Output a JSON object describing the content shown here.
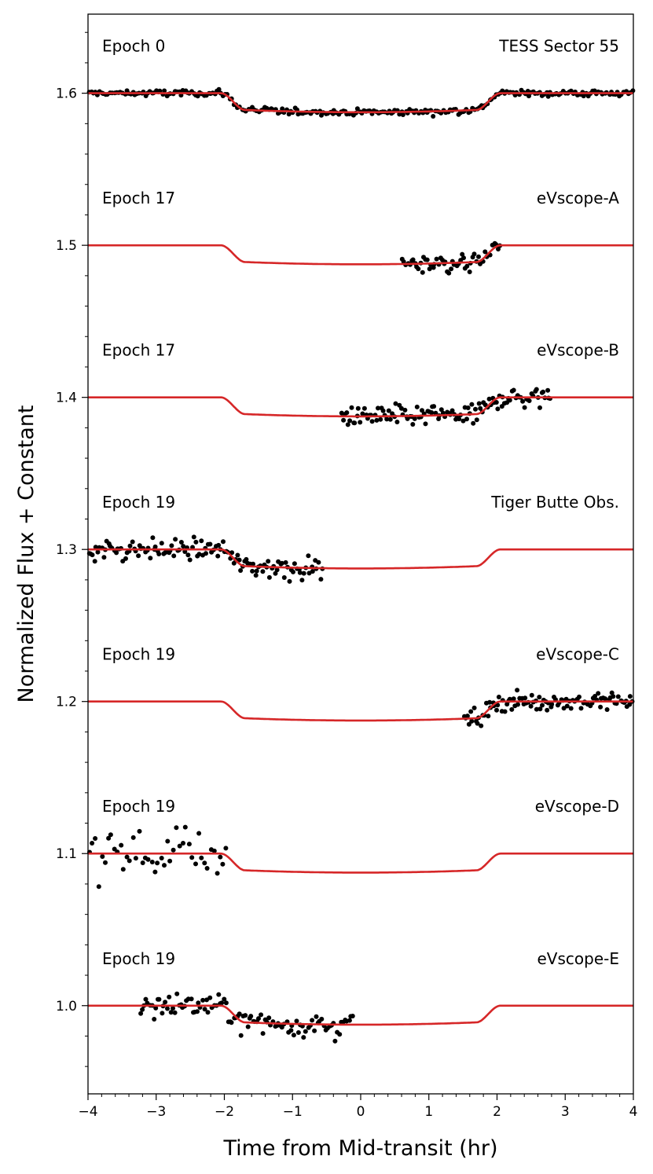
{
  "chart_data": {
    "type": "scatter",
    "xlabel": "Time from Mid-transit (hr)",
    "ylabel": "Normalized Flux + Constant",
    "xlim": [
      -4,
      4
    ],
    "ylim": [
      0.942,
      1.652
    ],
    "x_ticks": [
      -4,
      -3,
      -2,
      -1,
      0,
      1,
      2,
      3,
      4
    ],
    "x_tick_labels": [
      "−4",
      "−3",
      "−2",
      "−1",
      "0",
      "1",
      "2",
      "3",
      "4"
    ],
    "y_ticks": [
      1.0,
      1.1,
      1.2,
      1.3,
      1.4,
      1.5,
      1.6
    ],
    "y_tick_labels": [
      "1.0",
      "1.1",
      "1.2",
      "1.3",
      "1.4",
      "1.5",
      "1.6"
    ],
    "grid": false,
    "colors": {
      "model": "#d62728",
      "data": "#000000"
    },
    "transit_model": {
      "depth": 0.0125,
      "ingress_start": -2.05,
      "ingress_end": -1.7,
      "egress_start": 1.7,
      "egress_end": 2.05
    },
    "panels": [
      {
        "epoch": "Epoch 0",
        "instrument": "TESS Sector 55",
        "offset": 1.6,
        "data_range": [
          -4.0,
          4.0
        ],
        "n_points": 260,
        "scatter": 0.0015
      },
      {
        "epoch": "Epoch 17",
        "instrument": "eVscope-A",
        "offset": 1.5,
        "data_range": [
          0.6,
          2.05
        ],
        "n_points": 55,
        "scatter": 0.005
      },
      {
        "epoch": "Epoch 17",
        "instrument": "eVscope-B",
        "offset": 1.4,
        "data_range": [
          -0.3,
          2.8
        ],
        "n_points": 120,
        "scatter": 0.005
      },
      {
        "epoch": "Epoch 19",
        "instrument": "Tiger Butte Obs.",
        "offset": 1.3,
        "data_range": [
          -4.0,
          -0.55
        ],
        "n_points": 130,
        "scatter": 0.005
      },
      {
        "epoch": "Epoch 19",
        "instrument": "eVscope-C",
        "offset": 1.2,
        "data_range": [
          1.5,
          4.0
        ],
        "n_points": 100,
        "scatter": 0.004
      },
      {
        "epoch": "Epoch 19",
        "instrument": "eVscope-D",
        "offset": 1.1,
        "data_range": [
          -4.0,
          -1.95
        ],
        "n_points": 45,
        "scatter": 0.013
      },
      {
        "epoch": "Epoch 19",
        "instrument": "eVscope-E",
        "offset": 1.0,
        "data_range": [
          -3.25,
          -0.1
        ],
        "n_points": 110,
        "scatter": 0.006
      }
    ]
  }
}
